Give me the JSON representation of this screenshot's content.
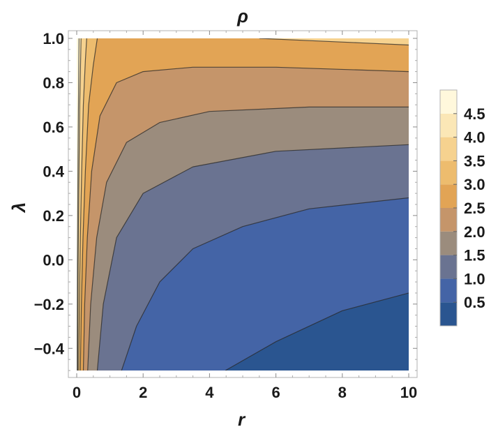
{
  "chart_data": {
    "type": "contour",
    "title": "ρ",
    "xlabel": "r",
    "ylabel": "λ",
    "xlim": [
      0,
      10
    ],
    "ylim": [
      -0.5,
      1.0
    ],
    "x_ticks": [
      0,
      2,
      4,
      6,
      8,
      10
    ],
    "x_tick_labels": [
      "0",
      "2",
      "4",
      "6",
      "8",
      "10"
    ],
    "y_ticks": [
      -0.4,
      -0.2,
      0.0,
      0.2,
      0.4,
      0.6,
      0.8,
      1.0
    ],
    "y_tick_labels": [
      "−0.4",
      "−0.2",
      "0.0",
      "0.2",
      "0.4",
      "0.6",
      "0.8",
      "1.0"
    ],
    "grid": false,
    "frame_ticks": true,
    "contour_levels": [
      0.5,
      1.0,
      1.5,
      2.0,
      2.5,
      3.0,
      3.5,
      4.0,
      4.5
    ],
    "contour_lines": [
      {
        "level": 0.5,
        "points": [
          [
            4.48,
            -0.5
          ],
          [
            6.0,
            -0.37
          ],
          [
            8.0,
            -0.23
          ],
          [
            10.0,
            -0.15
          ]
        ]
      },
      {
        "level": 1.0,
        "points": [
          [
            1.35,
            -0.5
          ],
          [
            1.8,
            -0.3
          ],
          [
            2.5,
            -0.1
          ],
          [
            3.5,
            0.05
          ],
          [
            5.0,
            0.15
          ],
          [
            7.0,
            0.23
          ],
          [
            10.0,
            0.28
          ]
        ]
      },
      {
        "level": 1.5,
        "points": [
          [
            0.62,
            -0.5
          ],
          [
            0.8,
            -0.2
          ],
          [
            1.2,
            0.1
          ],
          [
            2.0,
            0.3
          ],
          [
            3.5,
            0.42
          ],
          [
            6.0,
            0.49
          ],
          [
            10.0,
            0.52
          ]
        ]
      },
      {
        "level": 2.0,
        "points": [
          [
            0.33,
            -0.5
          ],
          [
            0.42,
            -0.2
          ],
          [
            0.6,
            0.1
          ],
          [
            0.9,
            0.35
          ],
          [
            1.5,
            0.53
          ],
          [
            2.5,
            0.62
          ],
          [
            4.0,
            0.67
          ],
          [
            7.0,
            0.69
          ],
          [
            10.0,
            0.69
          ]
        ]
      },
      {
        "level": 2.5,
        "points": [
          [
            0.2,
            -0.5
          ],
          [
            0.24,
            -0.2
          ],
          [
            0.32,
            0.1
          ],
          [
            0.45,
            0.4
          ],
          [
            0.7,
            0.65
          ],
          [
            1.2,
            0.8
          ],
          [
            2.0,
            0.85
          ],
          [
            3.5,
            0.87
          ],
          [
            6.0,
            0.87
          ],
          [
            10.0,
            0.85
          ]
        ]
      },
      {
        "level": 3.0,
        "points": [
          [
            0.11,
            -0.5
          ],
          [
            0.14,
            -0.2
          ],
          [
            0.19,
            0.1
          ],
          [
            0.26,
            0.4
          ],
          [
            0.36,
            0.7
          ],
          [
            0.5,
            0.88
          ],
          [
            0.62,
            1.0
          ]
        ]
      },
      {
        "level": 3.5,
        "points": [
          [
            0.06,
            -0.5
          ],
          [
            0.08,
            -0.2
          ],
          [
            0.11,
            0.1
          ],
          [
            0.15,
            0.4
          ],
          [
            0.2,
            0.7
          ],
          [
            0.26,
            0.9
          ],
          [
            0.3,
            1.0
          ]
        ]
      },
      {
        "level": 4.0,
        "points": [
          [
            0.03,
            -0.5
          ],
          [
            0.04,
            -0.1
          ],
          [
            0.06,
            0.3
          ],
          [
            0.09,
            0.7
          ],
          [
            0.13,
            1.0
          ]
        ]
      },
      {
        "level": 4.5,
        "points": [
          [
            0.01,
            -0.5
          ],
          [
            0.02,
            0.0
          ],
          [
            0.04,
            0.5
          ],
          [
            0.07,
            1.0
          ]
        ]
      },
      {
        "level": 3.5,
        "points": [
          [
            5.5,
            1.0
          ],
          [
            7.0,
            0.99
          ],
          [
            8.5,
            0.98
          ],
          [
            10.0,
            0.97
          ]
        ]
      }
    ],
    "legend": {
      "placement": "right",
      "ticks": [
        "0.5",
        "1.0",
        "1.5",
        "2.0",
        "2.5",
        "3.0",
        "3.5",
        "4.0",
        "4.5"
      ],
      "band_colors": [
        "#2a5590",
        "#4464a6",
        "#6a7391",
        "#9b8c7d",
        "#c5956a",
        "#e2a455",
        "#edbc6e",
        "#f6d28f",
        "#fbe7b6",
        "#fff8dc"
      ]
    }
  }
}
